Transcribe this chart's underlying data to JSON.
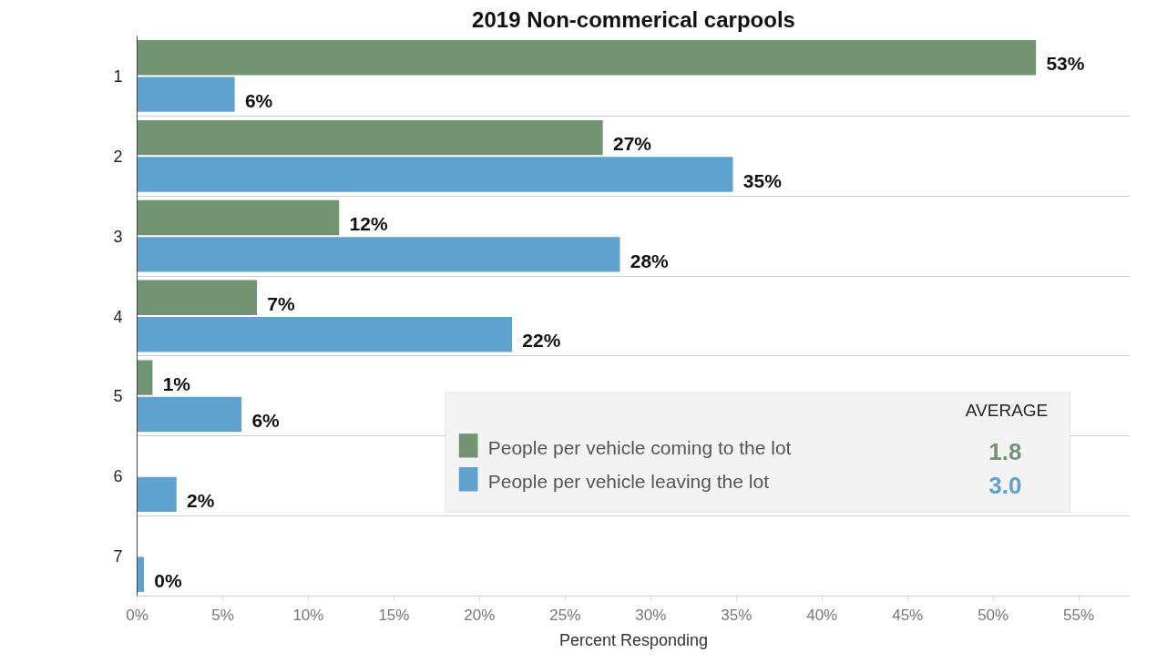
{
  "chart_data": {
    "type": "bar",
    "orientation": "horizontal",
    "title": "2019 Non-commerical carpools",
    "xlabel": "Percent Responding",
    "categories": [
      "1",
      "2",
      "3",
      "4",
      "5",
      "6",
      "7"
    ],
    "series": [
      {
        "name": "People per vehicle coming to the lot",
        "color": "#739473",
        "values": [
          52.5,
          27.2,
          11.8,
          7,
          0.9,
          null,
          null
        ],
        "value_labels": [
          "53%",
          "27%",
          "12%",
          "7%",
          "1%",
          null,
          null
        ]
      },
      {
        "name": "People per vehicle leaving the lot",
        "color": "#5fa2ce",
        "values": [
          5.7,
          34.8,
          28.2,
          21.9,
          6.1,
          2.3,
          0.4
        ],
        "value_labels": [
          "6%",
          "35%",
          "28%",
          "22%",
          "6%",
          "2%",
          "0%"
        ]
      }
    ],
    "xlim": [
      0,
      58
    ],
    "xticks": [
      {
        "value": 0,
        "label": "0%"
      },
      {
        "value": 5,
        "label": "5%"
      },
      {
        "value": 10,
        "label": "10%"
      },
      {
        "value": 15,
        "label": "15%"
      },
      {
        "value": 20,
        "label": "20%"
      },
      {
        "value": 25,
        "label": "25%"
      },
      {
        "value": 30,
        "label": "30%"
      },
      {
        "value": 35,
        "label": "35%"
      },
      {
        "value": 40,
        "label": "40%"
      },
      {
        "value": 45,
        "label": "45%"
      },
      {
        "value": 50,
        "label": "50%"
      },
      {
        "value": 55,
        "label": "55%"
      }
    ],
    "legend": "bottom right",
    "legend_title": "AVERAGE",
    "annotations": [
      "1.8",
      "3.0"
    ],
    "grid": "y"
  }
}
